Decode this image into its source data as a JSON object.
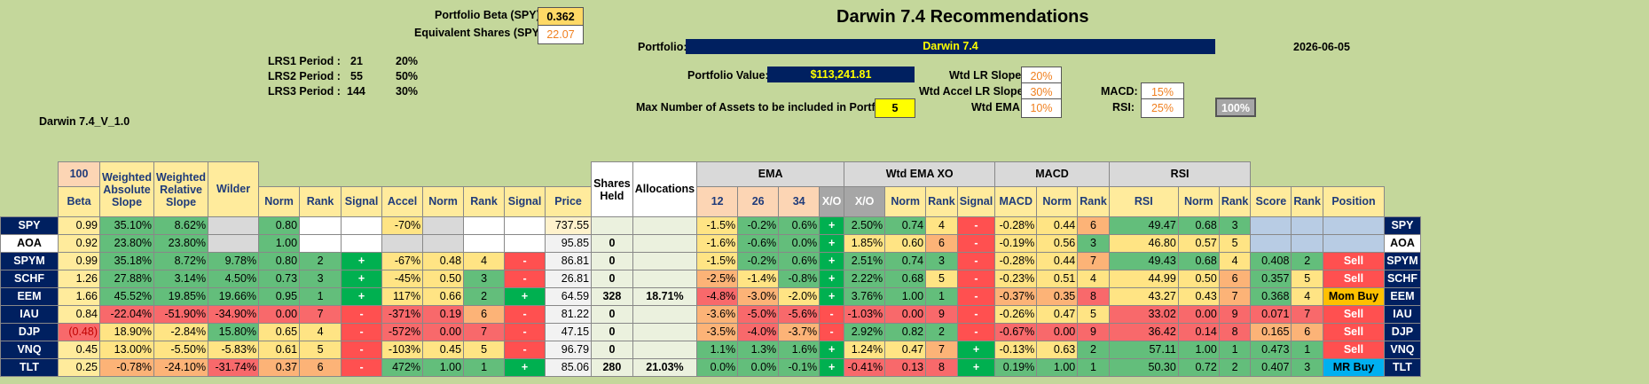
{
  "header": {
    "portfolio_beta_label": "Portfolio Beta (SPY):",
    "portfolio_beta_value": "0.362",
    "equiv_shares_label": "Equivalent Shares (SPY):",
    "equiv_shares_value": "22.07",
    "title": "Darwin 7.4 Recommendations",
    "portfolio_label": "Portfolio:",
    "portfolio_name": "Darwin 7.4",
    "date": "2026-06-05",
    "portfolio_value_label": "Portfolio Value:",
    "portfolio_value": "$113,241.81",
    "max_assets_label": "Max Number of Assets to be included in Portfolio:",
    "max_assets_value": "5",
    "version": "Darwin 7.4_V_1.0"
  },
  "lrs": [
    {
      "label": "LRS1 Period :",
      "period": "21",
      "pct": "20%"
    },
    {
      "label": "LRS2 Period :",
      "period": "55",
      "pct": "50%"
    },
    {
      "label": "LRS3 Period :",
      "period": "144",
      "pct": "30%"
    }
  ],
  "weights": {
    "lr_slope_label": "Wtd LR Slope:",
    "lr_slope": "20%",
    "accel_label": "Wtd Accel LR Slope:",
    "accel": "30%",
    "ema_label": "Wtd EMA:",
    "ema": "10%",
    "macd_label": "MACD:",
    "macd": "15%",
    "rsi_label": "RSI:",
    "rsi": "25%",
    "total": "100%"
  },
  "table": {
    "group_ema": "EMA",
    "group_wtd_ema_xo": "Wtd EMA XO",
    "group_macd": "MACD",
    "group_rsi": "RSI",
    "beta_top": "100",
    "headers": {
      "beta": "Beta",
      "was": "Weighted Absolute Slope",
      "wrs": "Weighted Relative Slope",
      "wilder": "Wilder",
      "norm1": "Norm",
      "rank1": "Rank",
      "signal1": "Signal",
      "accel": "Accel",
      "norm2": "Norm",
      "rank2": "Rank",
      "signal2": "Signal",
      "price": "Price",
      "shares": "Shares Held",
      "alloc": "Allocations",
      "e12": "12",
      "e26": "26",
      "e34": "34",
      "xo": "X/O",
      "xo2": "X/O",
      "norm3": "Norm",
      "rank3": "Rank",
      "signal3": "Signal",
      "macd": "MACD",
      "norm4": "Norm",
      "rank4": "Rank",
      "rsi": "RSI",
      "norm5": "Norm",
      "rank5": "Rank",
      "score": "Score",
      "rank6": "Rank",
      "position": "Position"
    },
    "rows": [
      {
        "t": "SPY",
        "beta": "0.99",
        "was": "35.10%",
        "wrs": "8.62%",
        "wilder": "",
        "n1": "0.80",
        "r1": "",
        "s1": "",
        "acc": "-70%",
        "n2": "",
        "r2": "",
        "s2": "",
        "price": "737.55",
        "sh": "",
        "al": "",
        "e12": "-1.5%",
        "e26": "-0.2%",
        "e34": "0.6%",
        "xo": "+",
        "xo2": "2.50%",
        "n3": "0.74",
        "r3": "4",
        "s3": "-",
        "macd": "-0.28%",
        "n4": "0.44",
        "r4": "6",
        "rsi": "49.47",
        "n5": "0.68",
        "r5": "3",
        "score": "",
        "r6": "",
        "pos": ""
      },
      {
        "t": "AOA",
        "beta": "0.92",
        "was": "23.80%",
        "wrs": "23.80%",
        "wilder": "",
        "n1": "1.00",
        "r1": "",
        "s1": "",
        "acc": "",
        "n2": "",
        "r2": "",
        "s2": "",
        "price": "95.85",
        "sh": "0",
        "al": "",
        "e12": "-1.6%",
        "e26": "-0.6%",
        "e34": "0.0%",
        "xo": "+",
        "xo2": "1.85%",
        "n3": "0.60",
        "r3": "6",
        "s3": "-",
        "macd": "-0.19%",
        "n4": "0.56",
        "r4": "3",
        "rsi": "46.80",
        "n5": "0.57",
        "r5": "5",
        "score": "",
        "r6": "",
        "pos": ""
      },
      {
        "t": "SPYM",
        "beta": "0.99",
        "was": "35.18%",
        "wrs": "8.72%",
        "wilder": "9.78%",
        "n1": "0.80",
        "r1": "2",
        "s1": "+",
        "acc": "-67%",
        "n2": "0.48",
        "r2": "4",
        "s2": "-",
        "price": "86.81",
        "sh": "0",
        "al": "",
        "e12": "-1.5%",
        "e26": "-0.2%",
        "e34": "0.6%",
        "xo": "+",
        "xo2": "2.51%",
        "n3": "0.74",
        "r3": "3",
        "s3": "-",
        "macd": "-0.28%",
        "n4": "0.44",
        "r4": "7",
        "rsi": "49.43",
        "n5": "0.68",
        "r5": "4",
        "score": "0.408",
        "r6": "2",
        "pos": "Sell"
      },
      {
        "t": "SCHF",
        "beta": "1.26",
        "was": "27.88%",
        "wrs": "3.14%",
        "wilder": "4.50%",
        "n1": "0.73",
        "r1": "3",
        "s1": "+",
        "acc": "-45%",
        "n2": "0.50",
        "r2": "3",
        "s2": "-",
        "price": "26.81",
        "sh": "0",
        "al": "",
        "e12": "-2.5%",
        "e26": "-1.4%",
        "e34": "-0.8%",
        "xo": "+",
        "xo2": "2.22%",
        "n3": "0.68",
        "r3": "5",
        "s3": "-",
        "macd": "-0.23%",
        "n4": "0.51",
        "r4": "4",
        "rsi": "44.99",
        "n5": "0.50",
        "r5": "6",
        "score": "0.357",
        "r6": "5",
        "pos": "Sell"
      },
      {
        "t": "EEM",
        "beta": "1.66",
        "was": "45.52%",
        "wrs": "19.85%",
        "wilder": "19.66%",
        "n1": "0.95",
        "r1": "1",
        "s1": "+",
        "acc": "117%",
        "n2": "0.66",
        "r2": "2",
        "s2": "+",
        "price": "64.59",
        "sh": "328",
        "al": "18.71%",
        "e12": "-4.8%",
        "e26": "-3.0%",
        "e34": "-2.0%",
        "xo": "+",
        "xo2": "3.76%",
        "n3": "1.00",
        "r3": "1",
        "s3": "-",
        "macd": "-0.37%",
        "n4": "0.35",
        "r4": "8",
        "rsi": "43.27",
        "n5": "0.43",
        "r5": "7",
        "score": "0.368",
        "r6": "4",
        "pos": "Mom Buy"
      },
      {
        "t": "IAU",
        "beta": "0.84",
        "was": "-22.04%",
        "wrs": "-51.90%",
        "wilder": "-34.90%",
        "n1": "0.00",
        "r1": "7",
        "s1": "-",
        "acc": "-371%",
        "n2": "0.19",
        "r2": "6",
        "s2": "-",
        "price": "81.22",
        "sh": "0",
        "al": "",
        "e12": "-3.6%",
        "e26": "-5.0%",
        "e34": "-5.6%",
        "xo": "-",
        "xo2": "-1.03%",
        "n3": "0.00",
        "r3": "9",
        "s3": "-",
        "macd": "-0.26%",
        "n4": "0.47",
        "r4": "5",
        "rsi": "33.02",
        "n5": "0.00",
        "r5": "9",
        "score": "0.071",
        "r6": "7",
        "pos": "Sell"
      },
      {
        "t": "DJP",
        "beta": "(0.48)",
        "was": "18.90%",
        "wrs": "-2.84%",
        "wilder": "15.80%",
        "n1": "0.65",
        "r1": "4",
        "s1": "-",
        "acc": "-572%",
        "n2": "0.00",
        "r2": "7",
        "s2": "-",
        "price": "47.15",
        "sh": "0",
        "al": "",
        "e12": "-3.5%",
        "e26": "-4.0%",
        "e34": "-3.7%",
        "xo": "-",
        "xo2": "2.92%",
        "n3": "0.82",
        "r3": "2",
        "s3": "-",
        "macd": "-0.67%",
        "n4": "0.00",
        "r4": "9",
        "rsi": "36.42",
        "n5": "0.14",
        "r5": "8",
        "score": "0.165",
        "r6": "6",
        "pos": "Sell"
      },
      {
        "t": "VNQ",
        "beta": "0.45",
        "was": "13.00%",
        "wrs": "-5.50%",
        "wilder": "-5.83%",
        "n1": "0.61",
        "r1": "5",
        "s1": "-",
        "acc": "-103%",
        "n2": "0.45",
        "r2": "5",
        "s2": "-",
        "price": "96.79",
        "sh": "0",
        "al": "",
        "e12": "1.1%",
        "e26": "1.3%",
        "e34": "1.6%",
        "xo": "+",
        "xo2": "1.24%",
        "n3": "0.47",
        "r3": "7",
        "s3": "+",
        "macd": "-0.13%",
        "n4": "0.63",
        "r4": "2",
        "rsi": "57.11",
        "n5": "1.00",
        "r5": "1",
        "score": "0.473",
        "r6": "1",
        "pos": "Sell"
      },
      {
        "t": "TLT",
        "beta": "0.25",
        "was": "-0.78%",
        "wrs": "-24.10%",
        "wilder": "-31.74%",
        "n1": "0.37",
        "r1": "6",
        "s1": "-",
        "acc": "472%",
        "n2": "1.00",
        "r2": "1",
        "s2": "+",
        "price": "85.06",
        "sh": "280",
        "al": "21.03%",
        "e12": "0.0%",
        "e26": "0.0%",
        "e34": "-0.1%",
        "xo": "+",
        "xo2": "-0.41%",
        "n3": "0.13",
        "r3": "8",
        "s3": "+",
        "macd": "0.19%",
        "n4": "1.00",
        "r4": "1",
        "rsi": "50.30",
        "n5": "0.72",
        "r5": "2",
        "score": "0.407",
        "r6": "3",
        "pos": "MR Buy"
      }
    ]
  },
  "colors": {
    "navy": "#002060",
    "sheet_bg": "#c4d79b",
    "sell": "#ff5050",
    "mom_buy": "#ffc000",
    "mr_buy": "#00b0f0"
  }
}
